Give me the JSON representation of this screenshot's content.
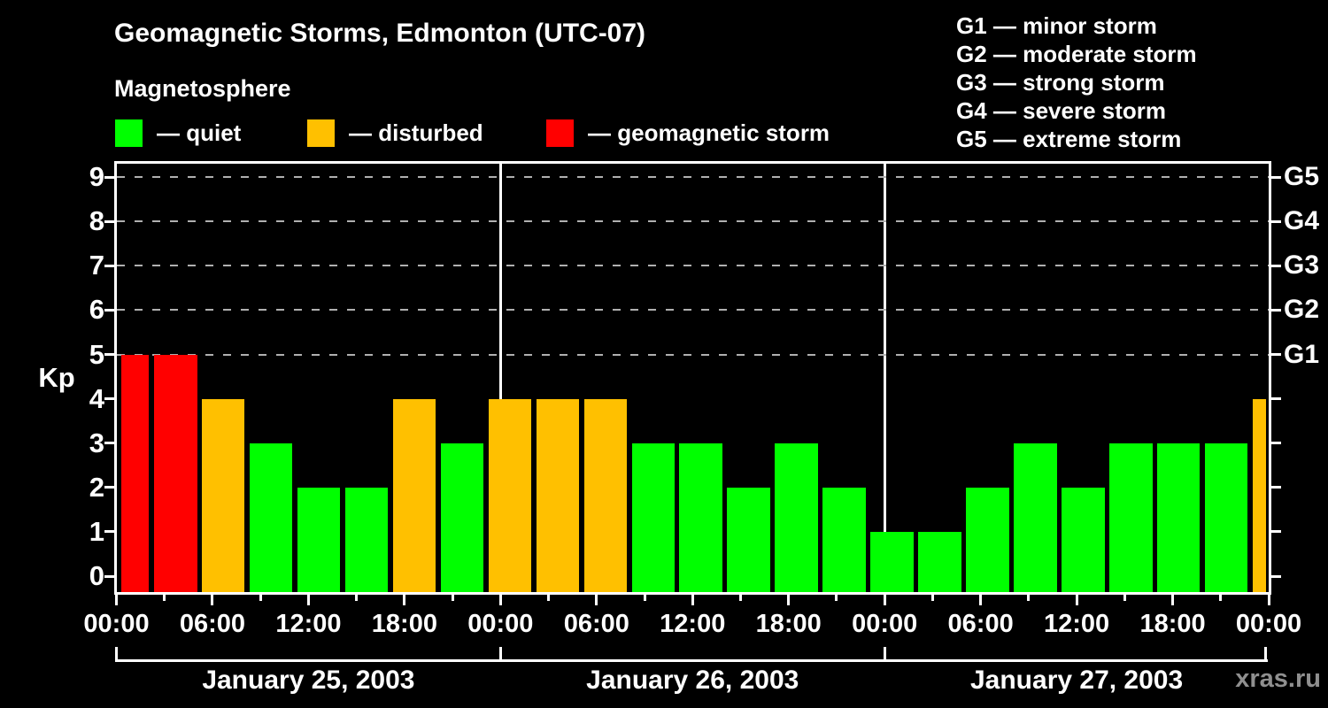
{
  "page": {
    "background": "#000000",
    "watermark": "xras.ru"
  },
  "header": {
    "title": "Geomagnetic Storms, Edmonton (UTC-07)",
    "subtitle": "Magnetosphere"
  },
  "legend": {
    "items": [
      {
        "key": "quiet",
        "label": "— quiet",
        "color": "#00ff00"
      },
      {
        "key": "disturbed",
        "label": "— disturbed",
        "color": "#ffc000"
      },
      {
        "key": "storm",
        "label": "— geomagnetic storm",
        "color": "#ff0000"
      }
    ]
  },
  "g_scale_legend": {
    "items": [
      {
        "label": "G1 — minor storm"
      },
      {
        "label": "G2 — moderate storm"
      },
      {
        "label": "G3 — strong storm"
      },
      {
        "label": "G4 — severe storm"
      },
      {
        "label": "G5 — extreme storm"
      }
    ]
  },
  "chart_data": {
    "type": "bar",
    "title": "Geomagnetic Storms, Edmonton (UTC-07)",
    "ylabel": "Kp",
    "ylim": [
      0,
      9
    ],
    "yticks": [
      0,
      1,
      2,
      3,
      4,
      5,
      6,
      7,
      8,
      9
    ],
    "gridlines_at_kp": [
      5,
      6,
      7,
      8,
      9
    ],
    "grid_style": "dashed",
    "legend_position": "top-left",
    "hours_span": 72,
    "bar_interval_hours": 3,
    "x_major_tick_hours": 6,
    "x_major_tick_labels": [
      "00:00",
      "06:00",
      "12:00",
      "18:00"
    ],
    "right_axis": {
      "labels": [
        {
          "kp": 5,
          "label": "G1"
        },
        {
          "kp": 6,
          "label": "G2"
        },
        {
          "kp": 7,
          "label": "G3"
        },
        {
          "kp": 8,
          "label": "G4"
        },
        {
          "kp": 9,
          "label": "G5"
        }
      ]
    },
    "days": [
      {
        "date": "January 25, 2003",
        "kp": [
          5,
          5,
          4,
          3,
          2,
          2,
          4,
          3
        ]
      },
      {
        "date": "January 26, 2003",
        "kp": [
          4,
          4,
          4,
          3,
          3,
          2,
          3,
          2
        ]
      },
      {
        "date": "January 27, 2003",
        "kp": [
          1,
          1,
          2,
          3,
          2,
          3,
          3,
          3
        ]
      }
    ],
    "partial_next_bar_kp": 4,
    "color_thresholds": {
      "storm_min_kp": 5,
      "disturbed_min_kp": 4
    },
    "colors": {
      "quiet": "#00ff00",
      "disturbed": "#ffc000",
      "storm": "#ff0000",
      "grid": "#b0b0b0",
      "axis": "#ffffff",
      "watermark": "#8f8f8f"
    }
  }
}
